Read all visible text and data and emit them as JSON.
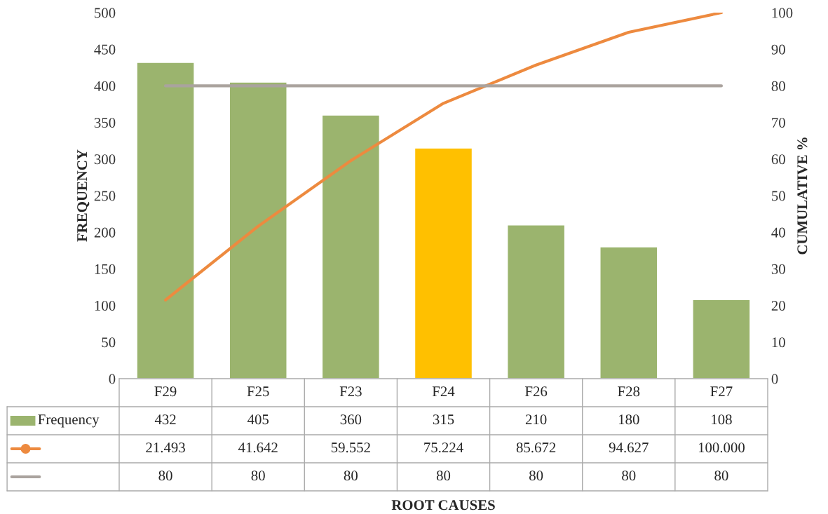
{
  "chart_data": {
    "type": "bar",
    "annotations": [
      "ROOT CAUSES"
    ],
    "ylabel": "FREQUENCY",
    "y2label": "CUMULATIVE %",
    "categories": [
      "F29",
      "F25",
      "F23",
      "F24",
      "F26",
      "F28",
      "F27"
    ],
    "series": [
      {
        "name": "Frequency",
        "color": "#9bb46e",
        "colors": [
          "#9bb46e",
          "#9bb46e",
          "#9bb46e",
          "#ffc000",
          "#9bb46e",
          "#9bb46e",
          "#9bb46e"
        ],
        "values": [
          432,
          405,
          360,
          315,
          210,
          180,
          108
        ],
        "value_labels": [
          "432",
          "405",
          "360",
          "315",
          "210",
          "180",
          "108"
        ]
      },
      {
        "type": "line",
        "axis": "y2",
        "color": "#ed8a3f",
        "marker": "none",
        "values": [
          21.493,
          41.642,
          59.552,
          75.224,
          85.672,
          94.627,
          100.0
        ],
        "value_labels": [
          "21.493",
          "41.642",
          "59.552",
          "75.224",
          "85.672",
          "94.627",
          "100.000"
        ]
      },
      {
        "type": "line",
        "axis": "y2",
        "color": "#aaa39e",
        "marker": "none",
        "values": [
          80,
          80,
          80,
          80,
          80,
          80,
          80
        ],
        "value_labels": [
          "80",
          "80",
          "80",
          "80",
          "80",
          "80",
          "80"
        ]
      }
    ],
    "ylim": [
      0,
      500
    ],
    "yticks": [
      0,
      50,
      100,
      150,
      200,
      250,
      300,
      350,
      400,
      450,
      500
    ],
    "y2lim": [
      0,
      100
    ],
    "y2ticks": [
      0,
      10,
      20,
      30,
      40,
      50,
      60,
      70,
      80,
      90,
      100
    ],
    "legend": "bottom left",
    "grid": false
  }
}
